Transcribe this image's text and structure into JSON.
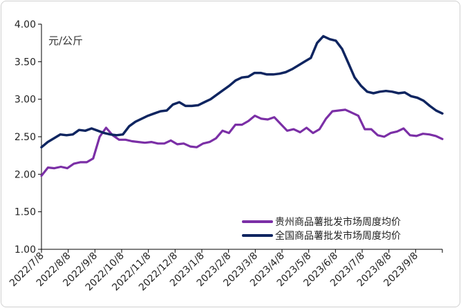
{
  "chart_data": {
    "type": "line",
    "unit_label": "元/公斤",
    "ylim": [
      1.0,
      4.0
    ],
    "yticks": [
      "1.00",
      "1.50",
      "2.00",
      "2.50",
      "3.00",
      "3.50",
      "4.00"
    ],
    "x_tick_labels": [
      "2022/7/8",
      "2022/8/8",
      "2022/9/8",
      "2022/10/8",
      "2022/11/8",
      "2022/12/8",
      "2023/1/8",
      "2023/2/8",
      "2023/3/8",
      "2023/4/8",
      "2023/5/8",
      "2023/6/8",
      "2023/7/8",
      "2023/8/8",
      "2023/9/8"
    ],
    "grid": false,
    "legend_position": "bottom-right",
    "series": [
      {
        "name": "贵州商品薯批发市场周度均价",
        "color": "#7b2fa6",
        "values": [
          1.98,
          2.09,
          2.08,
          2.1,
          2.08,
          2.14,
          2.16,
          2.16,
          2.21,
          2.5,
          2.62,
          2.52,
          2.46,
          2.46,
          2.44,
          2.43,
          2.42,
          2.43,
          2.41,
          2.41,
          2.45,
          2.4,
          2.41,
          2.37,
          2.36,
          2.41,
          2.43,
          2.48,
          2.58,
          2.55,
          2.66,
          2.66,
          2.71,
          2.78,
          2.74,
          2.73,
          2.76,
          2.67,
          2.58,
          2.6,
          2.56,
          2.62,
          2.55,
          2.6,
          2.74,
          2.84,
          2.85,
          2.86,
          2.82,
          2.78,
          2.6,
          2.6,
          2.52,
          2.5,
          2.55,
          2.57,
          2.61,
          2.52,
          2.51,
          2.54,
          2.53,
          2.51,
          2.47
        ]
      },
      {
        "name": "全国商品薯批发市场周度均价",
        "color": "#0f2560",
        "values": [
          2.36,
          2.43,
          2.48,
          2.53,
          2.52,
          2.53,
          2.59,
          2.58,
          2.61,
          2.58,
          2.55,
          2.53,
          2.52,
          2.53,
          2.64,
          2.7,
          2.74,
          2.78,
          2.81,
          2.84,
          2.85,
          2.93,
          2.96,
          2.91,
          2.91,
          2.92,
          2.96,
          3.0,
          3.06,
          3.12,
          3.18,
          3.25,
          3.29,
          3.3,
          3.35,
          3.35,
          3.33,
          3.33,
          3.34,
          3.36,
          3.4,
          3.45,
          3.5,
          3.55,
          3.75,
          3.84,
          3.8,
          3.78,
          3.67,
          3.48,
          3.29,
          3.18,
          3.1,
          3.08,
          3.1,
          3.11,
          3.1,
          3.08,
          3.09,
          3.04,
          3.02,
          2.98,
          2.91,
          2.85,
          2.81
        ]
      }
    ]
  }
}
